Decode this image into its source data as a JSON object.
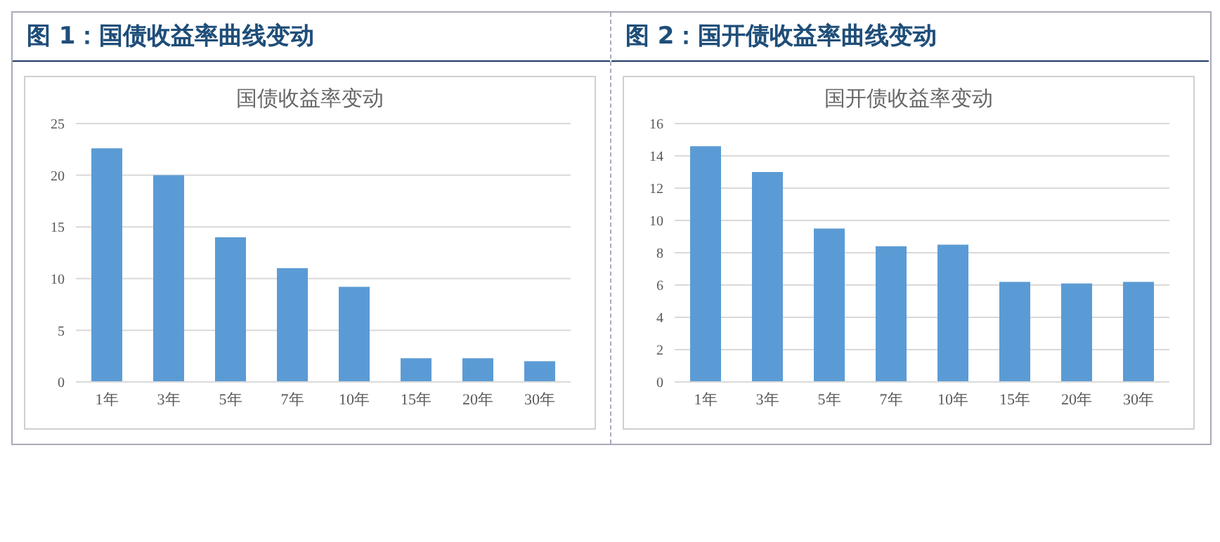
{
  "chart_data": [
    {
      "type": "bar",
      "title": "图 1：国债收益率曲线变动",
      "subtitle": "国债收益率变动",
      "categories": [
        "1年",
        "3年",
        "5年",
        "7年",
        "10年",
        "15年",
        "20年",
        "30年"
      ],
      "values": [
        22.6,
        20.0,
        14.0,
        11.0,
        9.2,
        2.3,
        2.3,
        2.0
      ],
      "color": "#5b9bd5",
      "ylim": [
        0,
        25
      ],
      "yticks": [
        0,
        5,
        10,
        15,
        20,
        25
      ],
      "grid": "y"
    },
    {
      "type": "bar",
      "title": "图 2：国开债收益率曲线变动",
      "subtitle": "国开债收益率变动",
      "categories": [
        "1年",
        "3年",
        "5年",
        "7年",
        "10年",
        "15年",
        "20年",
        "30年"
      ],
      "values": [
        14.6,
        13.0,
        9.5,
        8.4,
        8.5,
        6.2,
        6.1,
        6.2
      ],
      "color": "#5b9bd5",
      "ylim": [
        0,
        16
      ],
      "yticks": [
        0,
        2,
        4,
        6,
        8,
        10,
        12,
        14,
        16
      ],
      "grid": "y"
    }
  ]
}
